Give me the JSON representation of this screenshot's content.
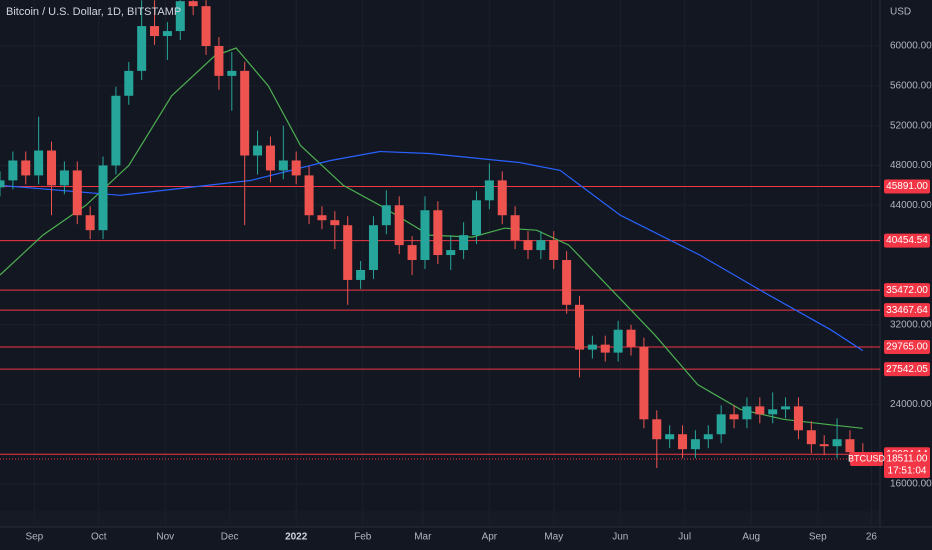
{
  "chart_data": {
    "type": "candlestick",
    "title": "Bitcoin / U.S. Dollar, 1D, BITSTAMP",
    "currency": "USD",
    "xlim": [
      0,
      410
    ],
    "xticks": [
      {
        "value": 16,
        "label": "Sep"
      },
      {
        "value": 46,
        "label": "Oct"
      },
      {
        "value": 77,
        "label": "Nov"
      },
      {
        "value": 107,
        "label": "Dec"
      },
      {
        "value": 138,
        "label": "2022"
      },
      {
        "value": 169,
        "label": "Feb"
      },
      {
        "value": 197,
        "label": "Mar"
      },
      {
        "value": 228,
        "label": "Apr"
      },
      {
        "value": 258,
        "label": "May"
      },
      {
        "value": 289,
        "label": "Jun"
      },
      {
        "value": 319,
        "label": "Jul"
      },
      {
        "value": 350,
        "label": "Aug"
      },
      {
        "value": 381,
        "label": "Sep"
      },
      {
        "value": 406,
        "label": "26"
      }
    ],
    "ylim": [
      13390,
      64620
    ],
    "yticks": [
      {
        "value": 16000,
        "label": "16000.00"
      },
      {
        "value": 24000,
        "label": "24000.00"
      },
      {
        "value": 32000,
        "label": "32000.00"
      },
      {
        "value": 44000,
        "label": "44000.00"
      },
      {
        "value": 48000,
        "label": "48000.00"
      },
      {
        "value": 52000,
        "label": "52000.00"
      },
      {
        "value": 56000,
        "label": "56000.00"
      },
      {
        "value": 60000,
        "label": "60000.00"
      }
    ],
    "grid": true,
    "up_color": "#26a69a",
    "down_color": "#ef5350",
    "candles": {
      "x": [
        0,
        6,
        12,
        18,
        24,
        30,
        36,
        42,
        48,
        54,
        60,
        66,
        72,
        78,
        84,
        90,
        96,
        102,
        108,
        114,
        120,
        126,
        132,
        138,
        144,
        150,
        156,
        162,
        168,
        174,
        180,
        186,
        192,
        198,
        204,
        210,
        216,
        222,
        228,
        234,
        240,
        246,
        252,
        258,
        264,
        270,
        276,
        282,
        288,
        294,
        300,
        306,
        312,
        318,
        324,
        330,
        336,
        342,
        348,
        354,
        360,
        366,
        372,
        378,
        384,
        390,
        396,
        402
      ],
      "open": [
        45800,
        46500,
        48500,
        47000,
        49500,
        46000,
        47500,
        43000,
        41500,
        48000,
        55000,
        57500,
        62000,
        61000,
        61500,
        64500,
        64000,
        60000,
        57000,
        57500,
        49000,
        50000,
        47500,
        48500,
        47000,
        43000,
        42500,
        42000,
        36500,
        37500,
        42000,
        44000,
        40000,
        38500,
        43500,
        39000,
        39500,
        41000,
        44500,
        46500,
        43000,
        40500,
        39500,
        40500,
        38500,
        34000,
        29500,
        30000,
        29200,
        31500,
        29800,
        22500,
        20500,
        21000,
        19500,
        20500,
        21000,
        23000,
        22500,
        23800,
        23000,
        23500,
        23800,
        21400,
        20000,
        19800,
        20500,
        19200
      ],
      "high": [
        47400,
        49400,
        49400,
        52900,
        50400,
        48400,
        48400,
        43900,
        48900,
        55900,
        58400,
        64600,
        64600,
        62400,
        64600,
        64600,
        64600,
        60900,
        59400,
        58400,
        51500,
        50900,
        52000,
        49400,
        47900,
        43900,
        43400,
        42900,
        38400,
        42900,
        45500,
        44900,
        40900,
        44900,
        44400,
        41000,
        42300,
        45400,
        48200,
        47400,
        43900,
        41400,
        41400,
        41400,
        39400,
        34900,
        30900,
        30900,
        32400,
        32000,
        30700,
        23400,
        21900,
        21900,
        21400,
        21900,
        23900,
        23900,
        24700,
        24700,
        25200,
        24700,
        24700,
        22300,
        20900,
        22600,
        21400,
        20100
      ],
      "low": [
        44900,
        45600,
        46100,
        46100,
        43000,
        45100,
        42100,
        40600,
        40600,
        47100,
        54100,
        56600,
        60100,
        58600,
        60600,
        63100,
        59100,
        55600,
        53500,
        42000,
        47100,
        46300,
        46600,
        46100,
        42100,
        41600,
        39600,
        34000,
        35600,
        36600,
        41100,
        39100,
        37000,
        37600,
        38100,
        37500,
        38600,
        40100,
        43600,
        42100,
        39600,
        38600,
        38600,
        37600,
        33100,
        26700,
        28600,
        28300,
        28300,
        28900,
        21600,
        17600,
        19600,
        18600,
        18600,
        19600,
        20100,
        21600,
        21600,
        22100,
        22100,
        22600,
        20500,
        19100,
        18900,
        18600,
        18300,
        18200
      ],
      "close": [
        46500,
        48500,
        47000,
        49500,
        46000,
        47500,
        43000,
        41500,
        48000,
        55000,
        57500,
        62000,
        61000,
        61500,
        64500,
        64000,
        60000,
        57000,
        57500,
        49000,
        50000,
        47500,
        48500,
        47000,
        43000,
        42500,
        42000,
        36500,
        37500,
        42000,
        44000,
        40000,
        38500,
        43500,
        39000,
        39500,
        41000,
        44500,
        46500,
        43000,
        40500,
        39500,
        40500,
        38500,
        34000,
        29500,
        30000,
        29200,
        31500,
        29800,
        22500,
        20500,
        21000,
        19500,
        20500,
        21000,
        23000,
        22500,
        23800,
        23000,
        23500,
        23800,
        21400,
        20000,
        19800,
        20500,
        19200,
        18511
      ]
    },
    "moving_averages": [
      {
        "color": "#4caf50",
        "x": [
          0,
          20,
          40,
          60,
          80,
          100,
          110,
          125,
          140,
          160,
          177,
          200,
          220,
          235,
          250,
          265,
          285,
          305,
          325,
          345,
          365,
          385,
          402
        ],
        "values": [
          37000,
          41000,
          44000,
          48000,
          55000,
          59000,
          59800,
          56000,
          50000,
          46000,
          44000,
          41000,
          40800,
          41700,
          41500,
          40000,
          35500,
          31000,
          26000,
          23500,
          22500,
          22000,
          21600
        ]
      },
      {
        "color": "#2962ff",
        "x": [
          0,
          56,
          117,
          154,
          177,
          200,
          242,
          261,
          289,
          326,
          354,
          387,
          402
        ],
        "values": [
          46000,
          45000,
          46500,
          48500,
          49400,
          49200,
          48300,
          47500,
          43000,
          39000,
          35500,
          31500,
          29400
        ]
      }
    ],
    "levels": {
      "color": "#f23645",
      "values": [
        45891,
        40454.54,
        35472,
        33467.64,
        29765,
        27542.05,
        18984.14
      ],
      "value_labels": [
        "45891.00",
        "40454.54",
        "35472.00",
        "33467.64",
        "29765.00",
        "27542.05",
        "18984.14"
      ]
    },
    "last_price": {
      "value": 18511,
      "label": "18511.00",
      "symbol": "BTCUSD",
      "countdown": "17:51:04"
    }
  }
}
